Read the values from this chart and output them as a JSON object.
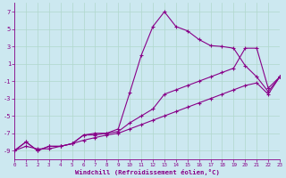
{
  "xlabel": "Windchill (Refroidissement éolien,°C)",
  "ylabel": "",
  "background_color": "#cce8f0",
  "grid_color": "#b0d8cc",
  "line_color": "#880088",
  "xlim": [
    0,
    23
  ],
  "ylim": [
    -10,
    8
  ],
  "xticks": [
    0,
    1,
    2,
    3,
    4,
    5,
    6,
    7,
    8,
    9,
    10,
    11,
    12,
    13,
    14,
    15,
    16,
    17,
    18,
    19,
    20,
    21,
    22,
    23
  ],
  "yticks": [
    -9,
    -7,
    -5,
    -3,
    -1,
    1,
    3,
    5,
    7
  ],
  "hours": [
    0,
    1,
    2,
    3,
    4,
    5,
    6,
    7,
    8,
    9,
    10,
    11,
    12,
    13,
    14,
    15,
    16,
    17,
    18,
    19,
    20,
    21,
    22,
    23
  ],
  "line1": [
    -9.0,
    -8.0,
    -9.0,
    -8.5,
    -8.5,
    -8.2,
    -7.2,
    -7.0,
    -7.0,
    -6.5,
    -2.3,
    2.0,
    5.3,
    7.0,
    5.3,
    4.8,
    3.8,
    3.1,
    3.0,
    2.8,
    0.8,
    -0.5,
    -2.2,
    -0.5
  ],
  "line2": [
    -9.0,
    -8.0,
    -9.0,
    -8.5,
    -8.5,
    -8.2,
    -7.2,
    -7.2,
    -7.0,
    -6.8,
    -5.8,
    -5.0,
    -4.2,
    -2.5,
    -2.0,
    -1.5,
    -1.0,
    -0.5,
    0.0,
    0.5,
    2.8,
    2.8,
    -1.8,
    -0.5
  ],
  "line3": [
    -9.0,
    -8.5,
    -8.8,
    -8.8,
    -8.5,
    -8.2,
    -7.8,
    -7.5,
    -7.2,
    -7.0,
    -6.5,
    -6.0,
    -5.5,
    -5.0,
    -4.5,
    -4.0,
    -3.5,
    -3.0,
    -2.5,
    -2.0,
    -1.5,
    -1.2,
    -2.5,
    -0.5
  ]
}
